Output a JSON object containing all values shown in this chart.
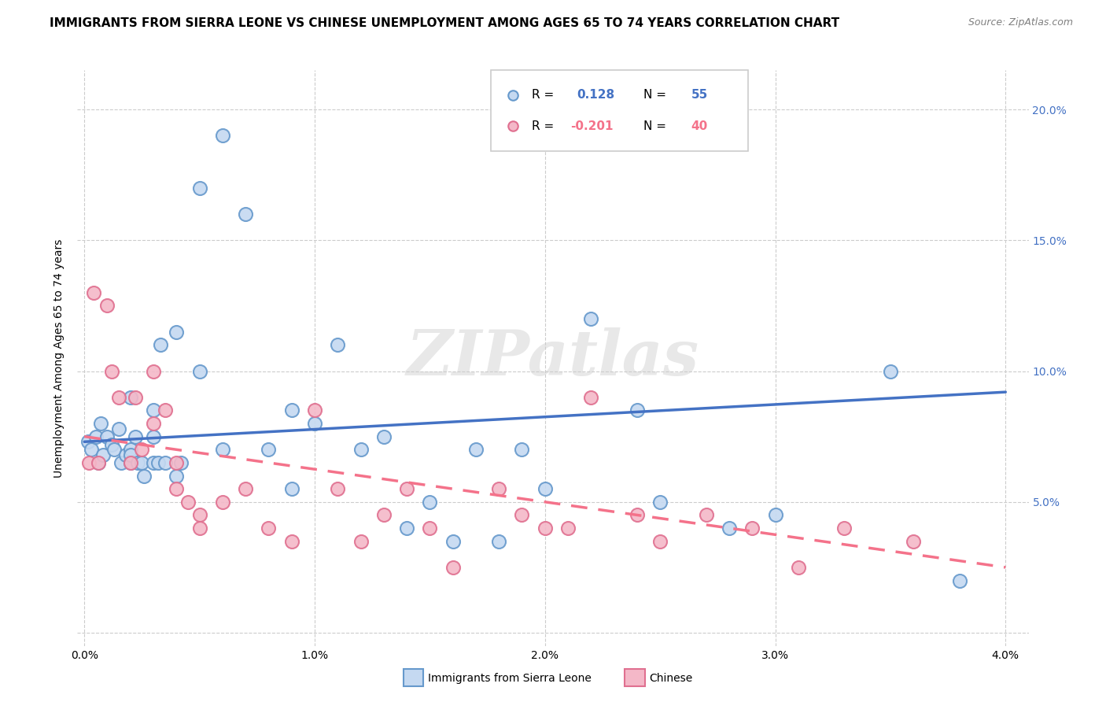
{
  "title": "IMMIGRANTS FROM SIERRA LEONE VS CHINESE UNEMPLOYMENT AMONG AGES 65 TO 74 YEARS CORRELATION CHART",
  "source": "Source: ZipAtlas.com",
  "ylabel": "Unemployment Among Ages 65 to 74 years",
  "y_ticks": [
    0.0,
    0.05,
    0.1,
    0.15,
    0.2
  ],
  "y_tick_labels_left": [
    "",
    "",
    "",
    "",
    ""
  ],
  "y_tick_labels_right": [
    "",
    "5.0%",
    "10.0%",
    "15.0%",
    "20.0%"
  ],
  "x_ticks": [
    0.0,
    0.01,
    0.02,
    0.03,
    0.04
  ],
  "x_tick_labels": [
    "0.0%",
    "1.0%",
    "2.0%",
    "3.0%",
    "4.0%"
  ],
  "blue_R": "0.128",
  "blue_N": "55",
  "pink_R": "-0.201",
  "pink_N": "40",
  "blue_scatter_x": [
    0.00015,
    0.0003,
    0.0005,
    0.0006,
    0.0007,
    0.0008,
    0.001,
    0.0012,
    0.0013,
    0.0015,
    0.0016,
    0.0018,
    0.002,
    0.002,
    0.002,
    0.002,
    0.0022,
    0.0023,
    0.0025,
    0.0026,
    0.003,
    0.003,
    0.003,
    0.0032,
    0.0033,
    0.0035,
    0.004,
    0.004,
    0.0042,
    0.005,
    0.005,
    0.006,
    0.006,
    0.007,
    0.008,
    0.009,
    0.009,
    0.01,
    0.011,
    0.012,
    0.013,
    0.014,
    0.015,
    0.016,
    0.017,
    0.018,
    0.019,
    0.02,
    0.022,
    0.024,
    0.025,
    0.028,
    0.03,
    0.035,
    0.038
  ],
  "blue_scatter_y": [
    0.073,
    0.07,
    0.075,
    0.065,
    0.08,
    0.068,
    0.075,
    0.072,
    0.07,
    0.078,
    0.065,
    0.068,
    0.065,
    0.07,
    0.068,
    0.09,
    0.075,
    0.065,
    0.065,
    0.06,
    0.075,
    0.065,
    0.085,
    0.065,
    0.11,
    0.065,
    0.06,
    0.115,
    0.065,
    0.1,
    0.17,
    0.19,
    0.07,
    0.16,
    0.07,
    0.085,
    0.055,
    0.08,
    0.11,
    0.07,
    0.075,
    0.04,
    0.05,
    0.035,
    0.07,
    0.035,
    0.07,
    0.055,
    0.12,
    0.085,
    0.05,
    0.04,
    0.045,
    0.1,
    0.02
  ],
  "pink_scatter_x": [
    0.0002,
    0.0004,
    0.0006,
    0.001,
    0.0012,
    0.0015,
    0.002,
    0.0022,
    0.0025,
    0.003,
    0.003,
    0.0035,
    0.004,
    0.004,
    0.0045,
    0.005,
    0.005,
    0.006,
    0.007,
    0.008,
    0.009,
    0.01,
    0.011,
    0.012,
    0.013,
    0.014,
    0.015,
    0.016,
    0.018,
    0.019,
    0.02,
    0.021,
    0.022,
    0.024,
    0.025,
    0.027,
    0.029,
    0.031,
    0.033,
    0.036
  ],
  "pink_scatter_y": [
    0.065,
    0.13,
    0.065,
    0.125,
    0.1,
    0.09,
    0.065,
    0.09,
    0.07,
    0.1,
    0.08,
    0.085,
    0.055,
    0.065,
    0.05,
    0.045,
    0.04,
    0.05,
    0.055,
    0.04,
    0.035,
    0.085,
    0.055,
    0.035,
    0.045,
    0.055,
    0.04,
    0.025,
    0.055,
    0.045,
    0.04,
    0.04,
    0.09,
    0.045,
    0.035,
    0.045,
    0.04,
    0.025,
    0.04,
    0.035
  ],
  "blue_line_x0": 0.0,
  "blue_line_x1": 0.04,
  "blue_line_y0": 0.073,
  "blue_line_y1": 0.092,
  "pink_line_x0": 0.0,
  "pink_line_x1": 0.04,
  "pink_line_y0": 0.075,
  "pink_line_y1": 0.025,
  "blue_line_color": "#4472c4",
  "pink_line_color": "#f4728a",
  "blue_scatter_fill": "#c5d9f1",
  "blue_scatter_edge": "#6699cc",
  "pink_scatter_fill": "#f4b8c8",
  "pink_scatter_edge": "#e07090",
  "bg_color": "#ffffff",
  "grid_color": "#cccccc",
  "tick_color_right": "#4472c4",
  "title_color": "#000000",
  "ylabel_color": "#000000"
}
